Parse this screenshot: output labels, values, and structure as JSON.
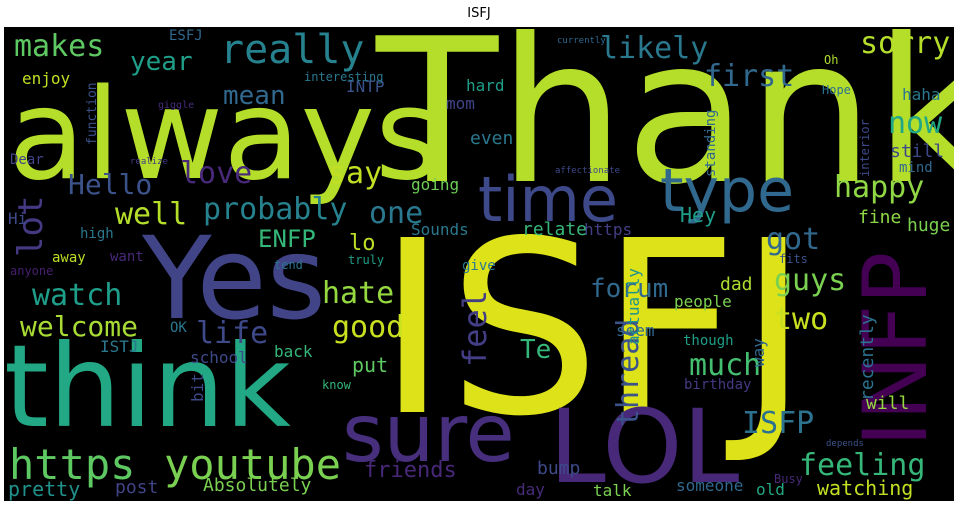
{
  "chart_data": {
    "type": "wordcloud",
    "title": "ISFJ",
    "words": [
      {
        "text": "ISFJ",
        "color": "#dde318"
      },
      {
        "text": "Thank",
        "color": "#b5de2b"
      },
      {
        "text": "always",
        "color": "#b5de2b"
      },
      {
        "text": "Yes",
        "color": "#414487"
      },
      {
        "text": "think",
        "color": "#22a884"
      },
      {
        "text": "sure",
        "color": "#472f7d"
      },
      {
        "text": "LOL",
        "color": "#482878"
      },
      {
        "text": "INFP",
        "color": "#440154"
      },
      {
        "text": "time",
        "color": "#3e4989"
      },
      {
        "text": "type",
        "color": "#31688e"
      },
      {
        "text": "https",
        "color": "#5ec962"
      },
      {
        "text": "youtube",
        "color": "#7ad151"
      },
      {
        "text": "really",
        "color": "#26828e"
      },
      {
        "text": "makes",
        "color": "#5ec962"
      },
      {
        "text": "likely",
        "color": "#2a788e"
      },
      {
        "text": "first",
        "color": "#31688e"
      },
      {
        "text": "sorry",
        "color": "#b5de2b"
      },
      {
        "text": "year",
        "color": "#1f9e89"
      },
      {
        "text": "mean",
        "color": "#31688e"
      },
      {
        "text": "love",
        "color": "#482878"
      },
      {
        "text": "say",
        "color": "#c2df23"
      },
      {
        "text": "Hello",
        "color": "#3b528b"
      },
      {
        "text": "happy",
        "color": "#8fd744"
      },
      {
        "text": "now",
        "color": "#22a884"
      },
      {
        "text": "well",
        "color": "#b5de2b"
      },
      {
        "text": "probably",
        "color": "#26828e"
      },
      {
        "text": "one",
        "color": "#2a788e"
      },
      {
        "text": "lot",
        "color": "#443983"
      },
      {
        "text": "ENFP",
        "color": "#35b779"
      },
      {
        "text": "lo",
        "color": "#bddf26"
      },
      {
        "text": "got",
        "color": "#31688e"
      },
      {
        "text": "watch",
        "color": "#1f9e89"
      },
      {
        "text": "hate",
        "color": "#95d840"
      },
      {
        "text": "guys",
        "color": "#7ad151"
      },
      {
        "text": "welcome",
        "color": "#a8db34"
      },
      {
        "text": "life",
        "color": "#3e4989"
      },
      {
        "text": "good",
        "color": "#c8e020"
      },
      {
        "text": "feel",
        "color": "#433e85"
      },
      {
        "text": "forum",
        "color": "#31688e"
      },
      {
        "text": "two",
        "color": "#c8e020"
      },
      {
        "text": "Te",
        "color": "#35b779"
      },
      {
        "text": "thread",
        "color": "#3b528b"
      },
      {
        "text": "much",
        "color": "#44bf70"
      },
      {
        "text": "ISFP",
        "color": "#2c728e"
      },
      {
        "text": "feeling",
        "color": "#35b779"
      },
      {
        "text": "friends",
        "color": "#482878"
      },
      {
        "text": "watching",
        "color": "#c2df23"
      },
      {
        "text": "Absolutely",
        "color": "#7ad151"
      },
      {
        "text": "pretty",
        "color": "#21918c"
      },
      {
        "text": "post",
        "color": "#414487"
      },
      {
        "text": "bump",
        "color": "#3e4989"
      },
      {
        "text": "day",
        "color": "#472c7a"
      },
      {
        "text": "talk",
        "color": "#7ad151"
      },
      {
        "text": "someone",
        "color": "#31688e"
      },
      {
        "text": "old",
        "color": "#22a884"
      },
      {
        "text": "will",
        "color": "#95d840"
      },
      {
        "text": "people",
        "color": "#7ad151"
      },
      {
        "text": "school",
        "color": "#3e4989"
      },
      {
        "text": "ISTJ",
        "color": "#2a788e"
      },
      {
        "text": "put",
        "color": "#5ec962"
      },
      {
        "text": "Hey",
        "color": "#1f9e89"
      },
      {
        "text": "fine",
        "color": "#8fd744"
      },
      {
        "text": "huge",
        "color": "#7ad151"
      },
      {
        "text": "dad",
        "color": "#addc30"
      },
      {
        "text": "relate",
        "color": "#35b779"
      },
      {
        "text": "Sounds",
        "color": "#2a788e"
      },
      {
        "text": "back",
        "color": "#35b779"
      },
      {
        "text": "seem",
        "color": "#31688e"
      },
      {
        "text": "https",
        "color": "#433e85"
      },
      {
        "text": "actually",
        "color": "#21918c"
      },
      {
        "text": "recently",
        "color": "#2c728e"
      },
      {
        "text": "way",
        "color": "#31688e"
      },
      {
        "text": "though",
        "color": "#1f9e89"
      },
      {
        "text": "birthday",
        "color": "#443983"
      },
      {
        "text": "still",
        "color": "#3e4989"
      },
      {
        "text": "mind",
        "color": "#31688e"
      },
      {
        "text": "haha",
        "color": "#2a788e"
      },
      {
        "text": "mom",
        "color": "#414487"
      },
      {
        "text": "hard",
        "color": "#1f9e89"
      },
      {
        "text": "even",
        "color": "#2a788e"
      },
      {
        "text": "going",
        "color": "#6ece58"
      },
      {
        "text": "standing",
        "color": "#31688e"
      },
      {
        "text": "interior",
        "color": "#3e4989"
      },
      {
        "text": "INTP",
        "color": "#3b528b"
      },
      {
        "text": "function",
        "color": "#3b528b"
      },
      {
        "text": "enjoy",
        "color": "#c2df23"
      },
      {
        "text": "Dear",
        "color": "#414487"
      },
      {
        "text": "Hi",
        "color": "#3e4989"
      },
      {
        "text": "high",
        "color": "#2a788e"
      },
      {
        "text": "away",
        "color": "#bddf26"
      },
      {
        "text": "want",
        "color": "#482878"
      },
      {
        "text": "anyone",
        "color": "#481f70"
      },
      {
        "text": "ESFJ",
        "color": "#31688e"
      },
      {
        "text": "interesting",
        "color": "#2a788e"
      },
      {
        "text": "OK",
        "color": "#2a788e"
      },
      {
        "text": "bit",
        "color": "#3e4989"
      },
      {
        "text": "give",
        "color": "#2a788e"
      },
      {
        "text": "know",
        "color": "#35b779"
      },
      {
        "text": "truly",
        "color": "#1f9e89"
      },
      {
        "text": "tend",
        "color": "#2c728e"
      },
      {
        "text": "fits",
        "color": "#3b528b"
      },
      {
        "text": "Oh",
        "color": "#addc30"
      },
      {
        "text": "Busy",
        "color": "#482878"
      },
      {
        "text": "Hope",
        "color": "#2c728e"
      },
      {
        "text": "currently",
        "color": "#31688e"
      },
      {
        "text": "giggle",
        "color": "#472c7a"
      },
      {
        "text": "realize",
        "color": "#443983"
      },
      {
        "text": "affectionate",
        "color": "#3e4989"
      },
      {
        "text": "depends",
        "color": "#3b528b"
      }
    ]
  }
}
